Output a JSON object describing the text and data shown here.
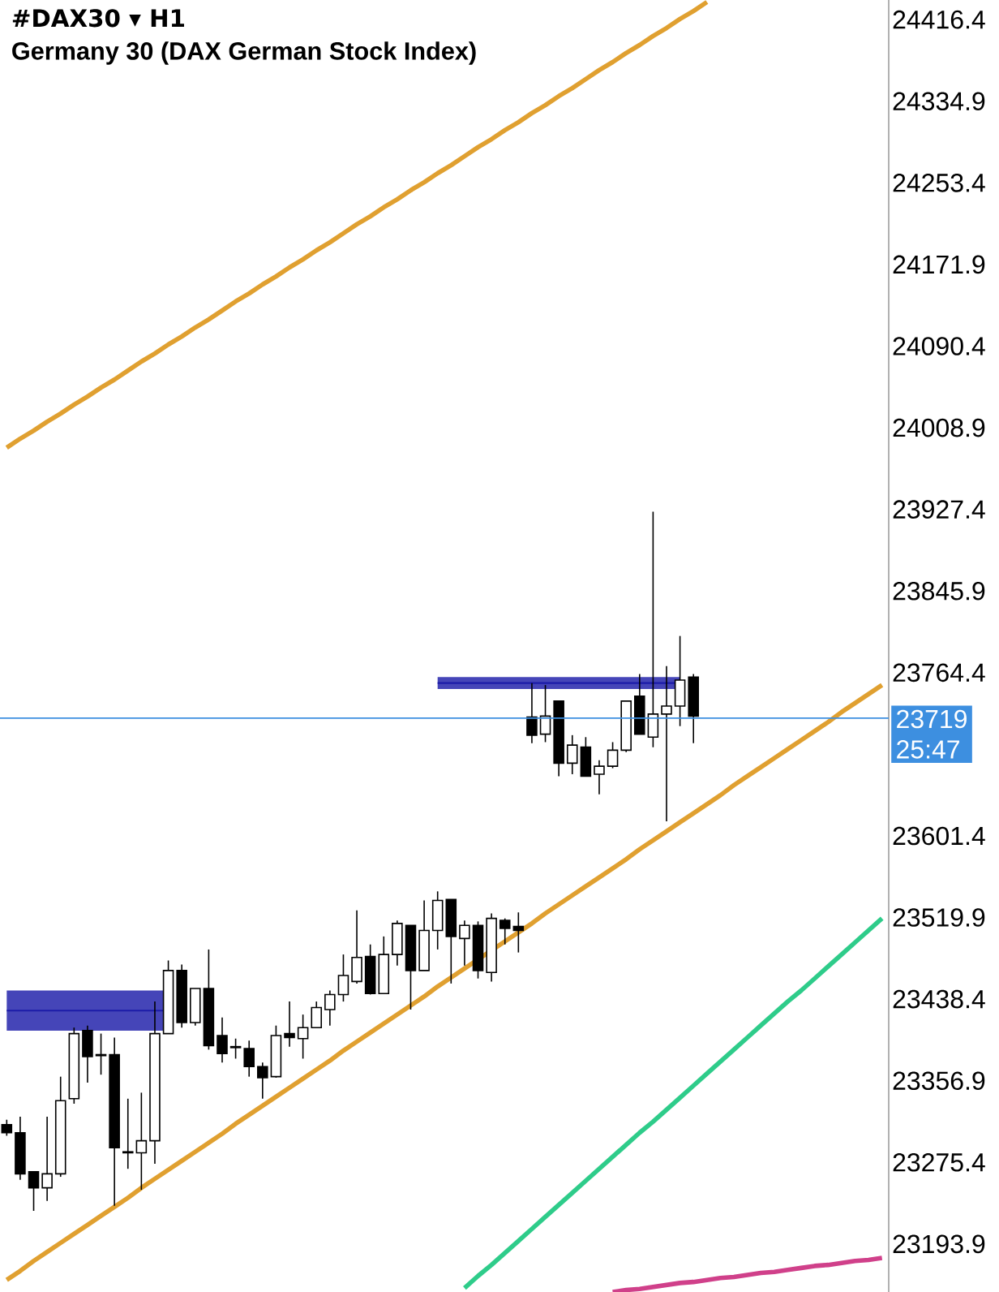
{
  "chart_data": {
    "type": "candlestick",
    "title": "#DAX30 ▾ H1",
    "subtitle": "Germany 30 (DAX German Stock Index)",
    "categories": [
      null,
      null,
      null,
      null,
      null,
      null,
      null,
      null,
      null,
      null,
      null,
      null,
      null,
      null,
      null,
      null,
      null,
      null,
      null,
      null,
      null,
      null,
      null,
      null,
      null,
      null,
      null,
      null,
      null,
      null,
      null,
      null,
      null,
      null,
      null,
      null,
      null,
      null,
      null,
      null,
      null,
      null,
      null,
      null,
      null,
      null,
      null,
      null,
      null,
      null,
      null,
      null,
      null,
      null,
      null,
      null,
      null,
      null,
      null,
      null,
      null,
      null,
      null,
      null,
      null,
      null
    ],
    "ohlc": [
      [
        23313,
        23318,
        23302,
        23305
      ],
      [
        23305,
        23321,
        23258,
        23264
      ],
      [
        23266,
        23266,
        23227,
        23250
      ],
      [
        23250,
        23321,
        23237,
        23264
      ],
      [
        23264,
        23361,
        23261,
        23337
      ],
      [
        23339,
        23410,
        23334,
        23404
      ],
      [
        23407,
        23412,
        23355,
        23381
      ],
      [
        23383,
        23404,
        23363,
        23382
      ],
      [
        23383,
        23400,
        23232,
        23290
      ],
      [
        23285,
        23339,
        23269,
        23286
      ],
      [
        23285,
        23345,
        23248,
        23297
      ],
      [
        23297,
        23436,
        23274,
        23404
      ],
      [
        23404,
        23477,
        23404,
        23467
      ],
      [
        23467,
        23473,
        23410,
        23415
      ],
      [
        23415,
        23449,
        23412,
        23449
      ],
      [
        23449,
        23488,
        23388,
        23392
      ],
      [
        23402,
        23420,
        23375,
        23384
      ],
      [
        23391,
        23399,
        23379,
        23390
      ],
      [
        23389,
        23397,
        23361,
        23371
      ],
      [
        23371,
        23375,
        23339,
        23360
      ],
      [
        23361,
        23412,
        23360,
        23402
      ],
      [
        23404,
        23436,
        23391,
        23400
      ],
      [
        23399,
        23423,
        23379,
        23410
      ],
      [
        23410,
        23436,
        23410,
        23430
      ],
      [
        23428,
        23447,
        23412,
        23443
      ],
      [
        23443,
        23483,
        23436,
        23462
      ],
      [
        23456,
        23527,
        23454,
        23480
      ],
      [
        23481,
        23493,
        23443,
        23444
      ],
      [
        23444,
        23501,
        23444,
        23483
      ],
      [
        23483,
        23517,
        23472,
        23514
      ],
      [
        23512,
        23512,
        23428,
        23467
      ],
      [
        23467,
        23537,
        23467,
        23507
      ],
      [
        23507,
        23546,
        23488,
        23537
      ],
      [
        23538,
        23538,
        23454,
        23501
      ],
      [
        23499,
        23517,
        23472,
        23512
      ],
      [
        23512,
        23516,
        23459,
        23467
      ],
      [
        23465,
        23524,
        23456,
        23519
      ],
      [
        23517,
        23519,
        23493,
        23509
      ],
      [
        23511,
        23525,
        23485,
        23507
      ],
      [
        23720,
        23754,
        23694,
        23702
      ],
      [
        23703,
        23752,
        23695,
        23721
      ],
      [
        23736,
        23736,
        23661,
        23674
      ],
      [
        23674,
        23702,
        23663,
        23692
      ],
      [
        23690,
        23700,
        23661,
        23661
      ],
      [
        23663,
        23677,
        23643,
        23671
      ],
      [
        23671,
        23695,
        23669,
        23687
      ],
      [
        23687,
        23736,
        23685,
        23736
      ],
      [
        23741,
        23763,
        23703,
        23703
      ],
      [
        23700,
        23925,
        23690,
        23723
      ],
      [
        23723,
        23771,
        23616,
        23731
      ],
      [
        23731,
        23801,
        23711,
        23757
      ],
      [
        23760,
        23763,
        23694,
        23721
      ],
      null,
      null,
      null,
      null,
      null,
      null,
      null,
      null,
      null,
      null,
      null,
      null,
      null,
      null
    ],
    "series": [
      {
        "type": "line",
        "color": "#e0a030",
        "values": [
          23989,
          23998,
          24006,
          24015,
          24023,
          24032,
          24040,
          24049,
          24057,
          24066,
          24075,
          24083,
          24092,
          24100,
          24109,
          24117,
          24126,
          24135,
          24143,
          24152,
          24160,
          24169,
          24177,
          24186,
          24194,
          24203,
          24212,
          24220,
          24229,
          24237,
          24246,
          24254,
          24263,
          24271,
          24280,
          24289,
          24297,
          24306,
          24314,
          24323,
          24331,
          24340,
          24348,
          24357,
          24366,
          24374,
          24383,
          24391,
          24400,
          24408,
          24417,
          24425,
          24434,
          null,
          null,
          null,
          null,
          null,
          null,
          null,
          null,
          null,
          null,
          null,
          null,
          null
        ]
      },
      {
        "type": "line",
        "color": "#e0a030",
        "values": [
          23158,
          23167,
          23177,
          23186,
          23195,
          23204,
          23213,
          23222,
          23231,
          23240,
          23250,
          23259,
          23268,
          23277,
          23286,
          23295,
          23304,
          23314,
          23323,
          23332,
          23341,
          23350,
          23359,
          23368,
          23377,
          23387,
          23396,
          23405,
          23414,
          23423,
          23432,
          23441,
          23451,
          23460,
          23469,
          23478,
          23487,
          23496,
          23505,
          23514,
          23524,
          23533,
          23542,
          23551,
          23560,
          23569,
          23578,
          23588,
          23597,
          23606,
          23615,
          23624,
          23633,
          23642,
          23652,
          23661,
          23670,
          23679,
          23688,
          23697,
          23706,
          23715,
          23725,
          23734,
          23743,
          23752
        ]
      },
      {
        "type": "line",
        "color": "#2ecc8a",
        "values": [
          null,
          null,
          null,
          null,
          null,
          null,
          null,
          null,
          null,
          null,
          null,
          null,
          null,
          null,
          null,
          null,
          null,
          null,
          null,
          null,
          null,
          null,
          null,
          null,
          null,
          null,
          null,
          null,
          null,
          null,
          null,
          null,
          null,
          null,
          23150,
          23162,
          23173,
          23185,
          23197,
          23209,
          23221,
          23233,
          23245,
          23257,
          23269,
          23281,
          23293,
          23305,
          23316,
          23328,
          23340,
          23352,
          23364,
          23376,
          23388,
          23400,
          23412,
          23424,
          23436,
          23447,
          23459,
          23471,
          23483,
          23495,
          23507,
          23519
        ]
      },
      {
        "type": "line",
        "color": "#d0408a",
        "values": [
          null,
          null,
          null,
          null,
          null,
          null,
          null,
          null,
          null,
          null,
          null,
          null,
          null,
          null,
          null,
          null,
          null,
          null,
          null,
          null,
          null,
          null,
          null,
          null,
          null,
          null,
          null,
          null,
          null,
          null,
          null,
          null,
          null,
          null,
          null,
          null,
          null,
          null,
          null,
          null,
          null,
          null,
          null,
          null,
          null,
          23146,
          23148,
          23149,
          23151,
          23153,
          23155,
          23156,
          23158,
          23160,
          23161,
          23163,
          23165,
          23166,
          23168,
          23170,
          23172,
          23173,
          23175,
          23177,
          23178,
          23180
        ]
      },
      {
        "type": "line",
        "color": "#1c1ca8",
        "values": [
          23427,
          23427,
          23427,
          23427,
          23427,
          23427,
          23427,
          23427,
          23427,
          23427,
          23427,
          23427,
          23427,
          null,
          null,
          null,
          null,
          null,
          null,
          null,
          null,
          null,
          null,
          null,
          null,
          null,
          null,
          null,
          null,
          null,
          null,
          null,
          null,
          null,
          null,
          null,
          null,
          null,
          null,
          null,
          null,
          null,
          null,
          null,
          null,
          null,
          null,
          null,
          null,
          null,
          null,
          null,
          null,
          null,
          null,
          null,
          null,
          null,
          null,
          null,
          null,
          null,
          null,
          null,
          null,
          null
        ],
        "lower": [
          23407,
          23407,
          23407,
          23407,
          23407,
          23407,
          23407,
          23407,
          23407,
          23407,
          23407,
          23407,
          23407,
          null,
          null,
          null,
          null,
          null,
          null,
          null,
          null,
          null,
          null,
          null,
          null,
          null,
          null,
          null,
          null,
          null,
          null,
          null,
          null,
          null,
          null,
          null,
          null,
          null,
          null,
          null,
          null,
          null,
          null,
          null,
          null,
          null,
          null,
          null,
          null,
          null,
          null,
          null,
          null,
          null,
          null,
          null,
          null,
          null,
          null,
          null,
          null,
          null,
          null,
          null,
          null,
          null
        ],
        "upper": [
          23447,
          23447,
          23447,
          23447,
          23447,
          23447,
          23447,
          23447,
          23447,
          23447,
          23447,
          23447,
          23447,
          null,
          null,
          null,
          null,
          null,
          null,
          null,
          null,
          null,
          null,
          null,
          null,
          null,
          null,
          null,
          null,
          null,
          null,
          null,
          null,
          null,
          null,
          null,
          null,
          null,
          null,
          null,
          null,
          null,
          null,
          null,
          null,
          null,
          null,
          null,
          null,
          null,
          null,
          null,
          null,
          null,
          null,
          null,
          null,
          null,
          null,
          null,
          null,
          null,
          null,
          null,
          null,
          null
        ]
      },
      {
        "type": "line",
        "color": "#1c1ca8",
        "values": [
          null,
          null,
          null,
          null,
          null,
          null,
          null,
          null,
          null,
          null,
          null,
          null,
          null,
          null,
          null,
          null,
          null,
          null,
          null,
          null,
          null,
          null,
          null,
          null,
          null,
          null,
          null,
          null,
          null,
          null,
          null,
          null,
          23754,
          23754,
          23754,
          23754,
          23754,
          23754,
          23754,
          23754,
          23754,
          23754,
          23754,
          23754,
          23754,
          23754,
          23754,
          23754,
          23754,
          23754,
          23754,
          null,
          null,
          null,
          null,
          null,
          null,
          null,
          null,
          null,
          null,
          null,
          null,
          null,
          null,
          null
        ],
        "lower": [
          null,
          null,
          null,
          null,
          null,
          null,
          null,
          null,
          null,
          null,
          null,
          null,
          null,
          null,
          null,
          null,
          null,
          null,
          null,
          null,
          null,
          null,
          null,
          null,
          null,
          null,
          null,
          null,
          null,
          null,
          null,
          null,
          23748,
          23748,
          23748,
          23748,
          23748,
          23748,
          23748,
          23748,
          23748,
          23748,
          23748,
          23748,
          23748,
          23748,
          23748,
          23748,
          23748,
          23748,
          23748,
          null,
          null,
          null,
          null,
          null,
          null,
          null,
          null,
          null,
          null,
          null,
          null,
          null,
          null,
          null
        ],
        "upper": [
          null,
          null,
          null,
          null,
          null,
          null,
          null,
          null,
          null,
          null,
          null,
          null,
          null,
          null,
          null,
          null,
          null,
          null,
          null,
          null,
          null,
          null,
          null,
          null,
          null,
          null,
          null,
          null,
          null,
          null,
          null,
          null,
          23760,
          23760,
          23760,
          23760,
          23760,
          23760,
          23760,
          23760,
          23760,
          23760,
          23760,
          23760,
          23760,
          23760,
          23760,
          23760,
          23760,
          23760,
          23760,
          null,
          null,
          null,
          null,
          null,
          null,
          null,
          null,
          null,
          null,
          null,
          null,
          null,
          null,
          null
        ]
      }
    ],
    "ref_lines": [
      {
        "axis": "y",
        "value": 23719,
        "label": "23719",
        "color": "#3d8fe0"
      }
    ],
    "annotations": [
      "25:47"
    ],
    "ylim": [
      23146,
      24436
    ],
    "yticks": [
      24416.4,
      24334.9,
      24253.4,
      24171.9,
      24090.4,
      24008.9,
      23927.4,
      23845.9,
      23764.4,
      23601.4,
      23519.9,
      23438.4,
      23356.9,
      23275.4,
      23193.9
    ],
    "tick_labels": "y"
  }
}
